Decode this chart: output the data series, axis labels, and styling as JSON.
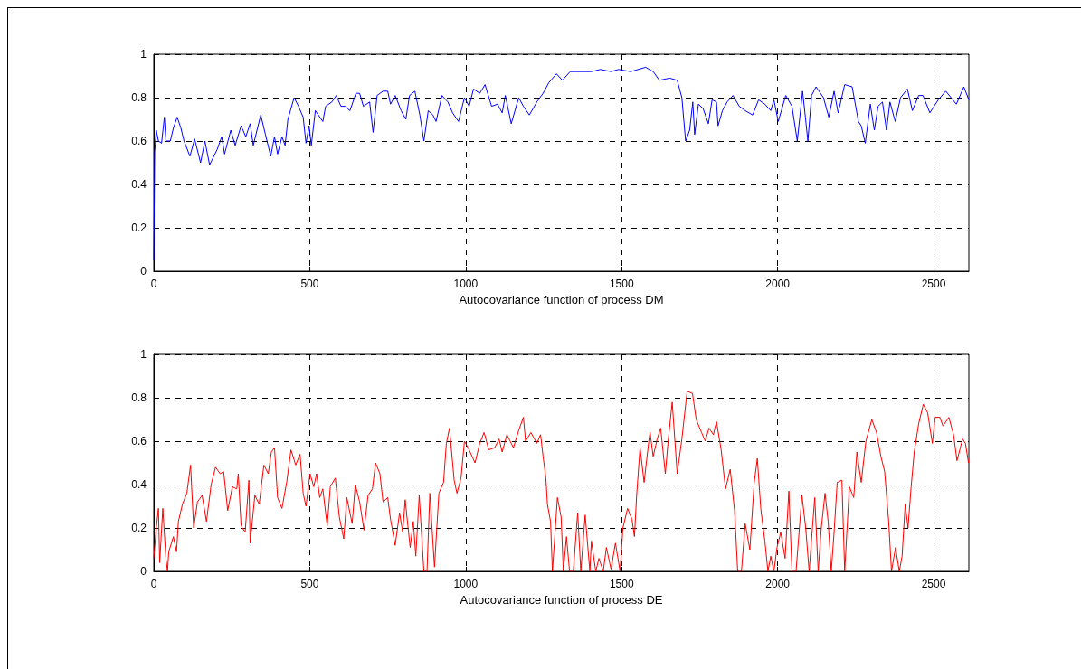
{
  "chart_data": [
    {
      "type": "line",
      "xlabel": "Autocovariance function of process DM",
      "color": "#0000ff",
      "grid": true,
      "xlim": [
        0,
        2613
      ],
      "xticks": [
        0,
        500,
        1000,
        1500,
        2000,
        2500
      ],
      "ylim": [
        0,
        1
      ],
      "yticks": [
        0,
        0.2,
        0.4,
        0.6,
        0.8,
        1
      ],
      "x": [
        0,
        3,
        8,
        15,
        25,
        34,
        39,
        53,
        63,
        75,
        87,
        97,
        116,
        131,
        150,
        164,
        179,
        203,
        218,
        227,
        247,
        261,
        280,
        295,
        309,
        319,
        343,
        358,
        375,
        387,
        397,
        411,
        421,
        430,
        450,
        464,
        479,
        488,
        498,
        505,
        518,
        542,
        551,
        571,
        585,
        600,
        614,
        629,
        648,
        660,
        672,
        692,
        703,
        716,
        735,
        750,
        759,
        774,
        793,
        808,
        820,
        837,
        853,
        866,
        880,
        895,
        905,
        924,
        943,
        958,
        977,
        996,
        1011,
        1025,
        1045,
        1062,
        1083,
        1102,
        1117,
        1127,
        1146,
        1170,
        1185,
        1204,
        1228,
        1248,
        1267,
        1291,
        1310,
        1335,
        1354,
        1403,
        1432,
        1466,
        1490,
        1529,
        1577,
        1601,
        1621,
        1654,
        1678,
        1693,
        1705,
        1718,
        1728,
        1734,
        1746,
        1761,
        1778,
        1790,
        1804,
        1809,
        1823,
        1838,
        1857,
        1877,
        1896,
        1920,
        1939,
        1959,
        1978,
        1988,
        2002,
        2026,
        2046,
        2063,
        2080,
        2089,
        2097,
        2109,
        2123,
        2147,
        2164,
        2181,
        2194,
        2215,
        2239,
        2259,
        2268,
        2281,
        2297,
        2310,
        2322,
        2336,
        2349,
        2360,
        2377,
        2394,
        2416,
        2432,
        2452,
        2466,
        2488,
        2515,
        2539,
        2573,
        2597,
        2613
      ],
      "values": [
        0.05,
        0.55,
        0.65,
        0.6,
        0.59,
        0.71,
        0.6,
        0.6,
        0.66,
        0.71,
        0.66,
        0.6,
        0.53,
        0.61,
        0.5,
        0.6,
        0.49,
        0.56,
        0.62,
        0.54,
        0.65,
        0.58,
        0.67,
        0.62,
        0.68,
        0.58,
        0.72,
        0.63,
        0.53,
        0.62,
        0.54,
        0.62,
        0.58,
        0.7,
        0.8,
        0.76,
        0.71,
        0.59,
        0.67,
        0.58,
        0.74,
        0.69,
        0.76,
        0.78,
        0.81,
        0.76,
        0.76,
        0.74,
        0.82,
        0.82,
        0.76,
        0.78,
        0.64,
        0.81,
        0.83,
        0.83,
        0.77,
        0.81,
        0.74,
        0.7,
        0.81,
        0.83,
        0.72,
        0.6,
        0.74,
        0.72,
        0.69,
        0.81,
        0.78,
        0.73,
        0.69,
        0.8,
        0.76,
        0.84,
        0.82,
        0.86,
        0.76,
        0.77,
        0.73,
        0.81,
        0.68,
        0.8,
        0.76,
        0.72,
        0.78,
        0.82,
        0.87,
        0.91,
        0.88,
        0.92,
        0.92,
        0.92,
        0.93,
        0.92,
        0.93,
        0.92,
        0.94,
        0.92,
        0.88,
        0.89,
        0.88,
        0.8,
        0.6,
        0.65,
        0.78,
        0.63,
        0.77,
        0.75,
        0.68,
        0.79,
        0.78,
        0.67,
        0.74,
        0.78,
        0.81,
        0.76,
        0.74,
        0.72,
        0.79,
        0.77,
        0.74,
        0.79,
        0.69,
        0.81,
        0.76,
        0.6,
        0.83,
        0.71,
        0.6,
        0.81,
        0.85,
        0.8,
        0.71,
        0.83,
        0.73,
        0.86,
        0.85,
        0.69,
        0.67,
        0.59,
        0.77,
        0.65,
        0.76,
        0.78,
        0.65,
        0.78,
        0.69,
        0.8,
        0.84,
        0.74,
        0.81,
        0.81,
        0.73,
        0.79,
        0.83,
        0.77,
        0.85,
        0.79
      ]
    },
    {
      "type": "line",
      "xlabel": "Autocovariance function of process DE",
      "color": "#ff0000",
      "grid": true,
      "xlim": [
        0,
        2613
      ],
      "xticks": [
        0,
        500,
        1000,
        1500,
        2000,
        2500
      ],
      "ylim": [
        0,
        1
      ],
      "yticks": [
        0,
        0.2,
        0.4,
        0.6,
        0.8,
        1
      ],
      "x": [
        0,
        8,
        15,
        19,
        29,
        39,
        44,
        48,
        63,
        73,
        79,
        92,
        106,
        118,
        128,
        140,
        155,
        169,
        184,
        198,
        213,
        224,
        237,
        252,
        266,
        271,
        280,
        293,
        305,
        309,
        324,
        338,
        353,
        367,
        377,
        387,
        397,
        411,
        426,
        440,
        455,
        469,
        479,
        488,
        501,
        513,
        522,
        532,
        542,
        556,
        566,
        582,
        595,
        609,
        619,
        636,
        646,
        660,
        674,
        687,
        701,
        711,
        725,
        735,
        750,
        759,
        774,
        788,
        798,
        806,
        822,
        832,
        840,
        851,
        866,
        876,
        885,
        900,
        914,
        929,
        938,
        948,
        963,
        972,
        985,
        996,
        1011,
        1030,
        1045,
        1059,
        1074,
        1093,
        1107,
        1117,
        1132,
        1153,
        1170,
        1185,
        1192,
        1209,
        1228,
        1240,
        1248,
        1257,
        1262,
        1272,
        1278,
        1294,
        1306,
        1313,
        1323,
        1333,
        1345,
        1359,
        1369,
        1383,
        1398,
        1403,
        1417,
        1427,
        1441,
        1451,
        1466,
        1480,
        1495,
        1504,
        1519,
        1533,
        1541,
        1548,
        1559,
        1572,
        1587,
        1591,
        1601,
        1614,
        1625,
        1640,
        1649,
        1662,
        1678,
        1693,
        1710,
        1727,
        1739,
        1756,
        1768,
        1780,
        1794,
        1804,
        1819,
        1833,
        1848,
        1862,
        1872,
        1884,
        1896,
        1911,
        1925,
        1935,
        1946,
        1959,
        1969,
        1978,
        1988,
        1998,
        2010,
        2024,
        2036,
        2046,
        2059,
        2078,
        2090,
        2101,
        2119,
        2130,
        2140,
        2152,
        2162,
        2172,
        2181,
        2191,
        2206,
        2215,
        2230,
        2244,
        2254,
        2268,
        2283,
        2302,
        2317,
        2331,
        2343,
        2356,
        2365,
        2378,
        2390,
        2399,
        2409,
        2418,
        2428,
        2438,
        2452,
        2467,
        2481,
        2496,
        2505,
        2520,
        2530,
        2549,
        2564,
        2575,
        2593,
        2602,
        2612
      ],
      "values": [
        0.06,
        0.2,
        0.29,
        0.04,
        0.29,
        0.06,
        0,
        0.09,
        0.16,
        0.09,
        0.23,
        0.31,
        0.36,
        0.49,
        0.2,
        0.32,
        0.35,
        0.23,
        0.4,
        0.48,
        0.45,
        0.46,
        0.28,
        0.39,
        0.38,
        0.45,
        0.21,
        0.18,
        0.42,
        0.13,
        0.35,
        0.31,
        0.49,
        0.45,
        0.55,
        0.57,
        0.34,
        0.29,
        0.41,
        0.56,
        0.49,
        0.54,
        0.36,
        0.3,
        0.45,
        0.39,
        0.45,
        0.34,
        0.38,
        0.21,
        0.39,
        0.43,
        0.25,
        0.15,
        0.34,
        0.22,
        0.4,
        0.32,
        0.19,
        0.35,
        0.38,
        0.5,
        0.45,
        0.32,
        0.34,
        0.24,
        0.12,
        0.27,
        0.18,
        0.33,
        0.11,
        0.23,
        0.07,
        0.35,
        0,
        0,
        0.36,
        0.02,
        0.36,
        0.41,
        0.59,
        0.66,
        0.42,
        0.36,
        0.43,
        0.6,
        0.56,
        0.5,
        0.59,
        0.64,
        0.56,
        0.57,
        0.61,
        0.55,
        0.63,
        0.57,
        0.65,
        0.71,
        0.6,
        0.64,
        0.59,
        0.63,
        0.53,
        0.43,
        0.31,
        0.23,
        0,
        0.34,
        0.25,
        0,
        0.16,
        0,
        0,
        0.27,
        0,
        0.26,
        0,
        0.14,
        0,
        0.06,
        0,
        0.11,
        0.01,
        0.13,
        0,
        0.2,
        0.29,
        0.24,
        0.16,
        0.35,
        0.57,
        0.41,
        0.6,
        0.64,
        0.53,
        0.61,
        0.66,
        0.45,
        0.6,
        0.78,
        0.45,
        0.61,
        0.83,
        0.82,
        0.7,
        0.64,
        0.6,
        0.66,
        0.63,
        0.69,
        0.56,
        0.38,
        0.47,
        0.28,
        0,
        0,
        0.22,
        0.1,
        0.41,
        0.52,
        0.29,
        0.14,
        0,
        0.07,
        0,
        0.11,
        0.18,
        0.06,
        0.37,
        0,
        0,
        0.35,
        0.2,
        0,
        0.34,
        0,
        0.2,
        0.36,
        0.23,
        0,
        0.18,
        0.41,
        0.42,
        0,
        0.39,
        0.34,
        0.55,
        0.41,
        0.6,
        0.7,
        0.64,
        0.53,
        0.46,
        0.23,
        0,
        0.11,
        0,
        0.07,
        0.31,
        0.2,
        0.39,
        0.55,
        0.68,
        0.77,
        0.73,
        0.59,
        0.71,
        0.71,
        0.67,
        0.71,
        0.63,
        0.51,
        0.61,
        0.59,
        0.5
      ]
    }
  ]
}
